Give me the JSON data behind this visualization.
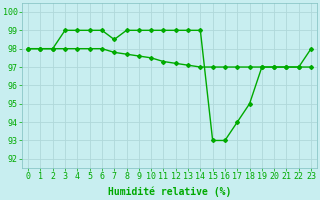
{
  "line1_x": [
    0,
    1,
    2,
    3,
    4,
    5,
    6,
    7,
    8,
    9,
    10,
    11,
    12,
    13,
    14,
    15,
    16,
    17,
    18,
    19,
    20,
    21,
    22,
    23
  ],
  "line1_y": [
    98,
    98,
    98,
    99,
    99,
    99,
    99,
    98.5,
    99,
    99,
    99,
    99,
    99,
    99,
    99,
    93,
    93,
    94,
    95,
    97,
    97,
    97,
    97,
    98
  ],
  "line2_x": [
    0,
    1,
    2,
    3,
    4,
    5,
    6,
    7,
    8,
    9,
    10,
    11,
    12,
    13,
    14,
    15,
    16,
    17,
    18,
    19,
    20,
    21,
    22,
    23
  ],
  "line2_y": [
    98,
    98,
    98,
    98,
    98,
    98,
    98,
    97.8,
    97.7,
    97.6,
    97.5,
    97.3,
    97.2,
    97.1,
    97.0,
    97.0,
    97.0,
    97.0,
    97.0,
    97.0,
    97.0,
    97.0,
    97.0,
    97.0
  ],
  "line_color": "#00aa00",
  "bg_color": "#c8eef0",
  "grid_color": "#b0d8da",
  "xlabel": "Humidité relative (%)",
  "xlabel_color": "#00aa00",
  "xlabel_fontsize": 7,
  "ylabel_ticks": [
    92,
    93,
    94,
    95,
    96,
    97,
    98,
    99,
    100
  ],
  "xlim": [
    -0.5,
    23.5
  ],
  "ylim": [
    91.5,
    100.5
  ],
  "tick_fontsize": 6,
  "marker": "D",
  "markersize": 2.0,
  "linewidth": 1.0
}
